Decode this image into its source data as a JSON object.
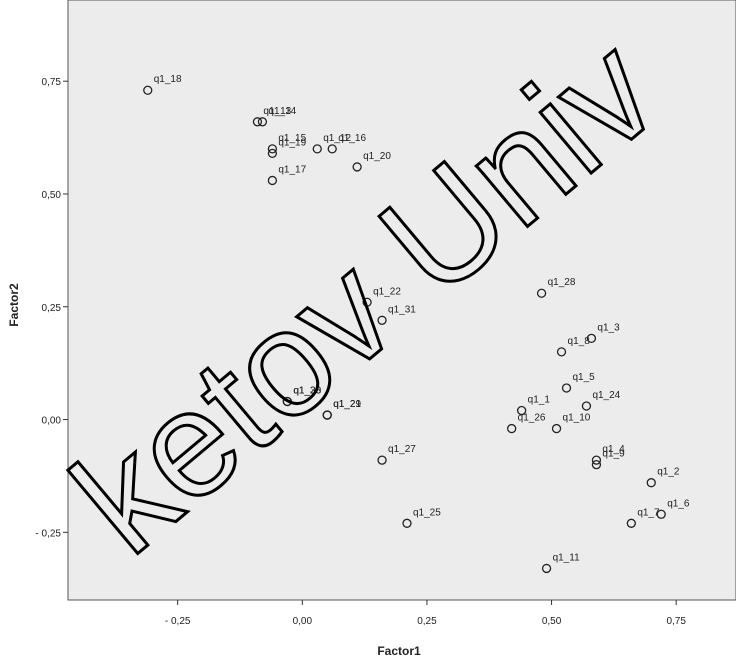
{
  "chart_data": {
    "type": "scatter",
    "title": "",
    "xlabel": "Factor1",
    "ylabel": "Factor2",
    "xlim": [
      -0.47,
      0.87
    ],
    "ylim": [
      -0.4,
      0.93
    ],
    "x_ticks": [
      -0.25,
      0.0,
      0.25,
      0.5,
      0.75
    ],
    "x_tick_labels": [
      "- 0,25",
      "0,00",
      "0,25",
      "0,50",
      "0,75"
    ],
    "y_ticks": [
      -0.25,
      0.0,
      0.25,
      0.5,
      0.75
    ],
    "y_tick_labels": [
      "- 0,25",
      "0,00",
      "0,25",
      "0,50",
      "0,75"
    ],
    "grid": false,
    "background": "#ececec",
    "marker_color": "#222222",
    "points": [
      {
        "label": "q1_18",
        "x": -0.31,
        "y": 0.73
      },
      {
        "label": "q1_13",
        "x": -0.09,
        "y": 0.66
      },
      {
        "label": "q1_14",
        "x": -0.08,
        "y": 0.66
      },
      {
        "label": "q1_15",
        "x": -0.06,
        "y": 0.6
      },
      {
        "label": "q1_19",
        "x": -0.06,
        "y": 0.59
      },
      {
        "label": "q1_16",
        "x": 0.06,
        "y": 0.6
      },
      {
        "label": "q1_12",
        "x": 0.03,
        "y": 0.6
      },
      {
        "label": "q1_20",
        "x": 0.11,
        "y": 0.56
      },
      {
        "label": "q1_17",
        "x": -0.06,
        "y": 0.53
      },
      {
        "label": "q1_22",
        "x": 0.13,
        "y": 0.26
      },
      {
        "label": "q1_31",
        "x": 0.16,
        "y": 0.22
      },
      {
        "label": "q1_23",
        "x": -0.03,
        "y": 0.04
      },
      {
        "label": "q1_30",
        "x": -0.03,
        "y": 0.04
      },
      {
        "label": "q1_21",
        "x": 0.05,
        "y": 0.01
      },
      {
        "label": "q1_29",
        "x": 0.05,
        "y": 0.01
      },
      {
        "label": "q1_27",
        "x": 0.16,
        "y": -0.09
      },
      {
        "label": "q1_25",
        "x": 0.21,
        "y": -0.23
      },
      {
        "label": "q1_28",
        "x": 0.48,
        "y": 0.28
      },
      {
        "label": "q1_3",
        "x": 0.58,
        "y": 0.18
      },
      {
        "label": "q1_8",
        "x": 0.52,
        "y": 0.15
      },
      {
        "label": "q1_5",
        "x": 0.53,
        "y": 0.07
      },
      {
        "label": "q1_24",
        "x": 0.57,
        "y": 0.03
      },
      {
        "label": "q1_1",
        "x": 0.44,
        "y": 0.02
      },
      {
        "label": "q1_26",
        "x": 0.42,
        "y": -0.02
      },
      {
        "label": "q1_10",
        "x": 0.51,
        "y": -0.02
      },
      {
        "label": "q1_9",
        "x": 0.59,
        "y": -0.1
      },
      {
        "label": "q1_4",
        "x": 0.59,
        "y": -0.09
      },
      {
        "label": "q1_2",
        "x": 0.7,
        "y": -0.14
      },
      {
        "label": "q1_6",
        "x": 0.72,
        "y": -0.21
      },
      {
        "label": "q1_7",
        "x": 0.66,
        "y": -0.23
      },
      {
        "label": "q1_11",
        "x": 0.49,
        "y": -0.33
      }
    ]
  },
  "watermark": {
    "text": "ketov Univ",
    "color": "#000000"
  }
}
